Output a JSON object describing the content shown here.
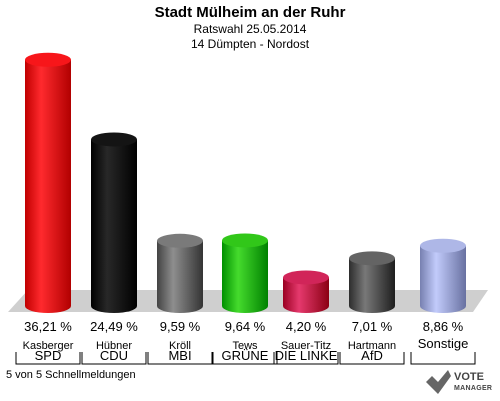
{
  "header": {
    "title": "Stadt Mülheim an der Ruhr",
    "subtitle1": "Ratswahl 25.05.2014",
    "subtitle2": "14 Dümpten - Nordost"
  },
  "footer": {
    "note": "5 von 5 Schnellmeldungen"
  },
  "logo": {
    "line1": "VOTE",
    "line2": "MANAGER"
  },
  "chart_data": {
    "type": "bar",
    "title": "Stadt Mülheim an der Ruhr",
    "subtitle": "Ratswahl 25.05.2014 — 14 Dümpten - Nordost",
    "xlabel": "",
    "ylabel": "",
    "ylim": [
      0,
      40
    ],
    "grid": false,
    "legend": "none",
    "categories": [
      "SPD",
      "CDU",
      "MBI",
      "GRÜNE",
      "DIE LINKE",
      "AfD",
      "Sonstige"
    ],
    "candidates": [
      "Kasberger",
      "Hübner",
      "Kröll",
      "Tews",
      "Sauer-Titz",
      "Hartmann",
      ""
    ],
    "values": [
      36.21,
      24.49,
      9.59,
      9.64,
      4.2,
      7.01,
      8.86
    ],
    "value_labels": [
      "36,21 %",
      "24,49 %",
      "9,59 %",
      "9,64 %",
      "4,20 %",
      "7,01 %",
      "8,86 %"
    ],
    "colors": [
      "#e8070b",
      "#050505",
      "#6b6b6b",
      "#22b80a",
      "#c2164a",
      "#555555",
      "#9fa8d8"
    ]
  }
}
